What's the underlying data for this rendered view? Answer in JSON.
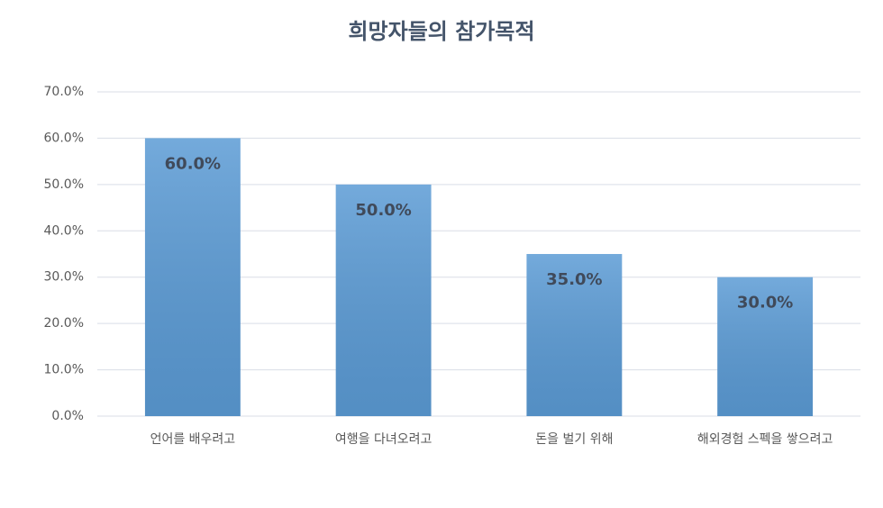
{
  "chart_data": {
    "type": "bar",
    "title": "희망자들의 참가목적",
    "categories": [
      "언어를 배우려고",
      "여행을 다녀오려고",
      "돈을 벌기 위해",
      "해외경험 스펙을 쌓으려고"
    ],
    "values": [
      60,
      50,
      35,
      30
    ],
    "value_labels": [
      "60.0%",
      "50.0%",
      "35.0%",
      "30.0%"
    ],
    "color": "#5b9bd5",
    "ylim": [
      0,
      70
    ],
    "yticks": [
      {
        "value": 0,
        "label": "0.0%"
      },
      {
        "value": 10,
        "label": "10.0%"
      },
      {
        "value": 20,
        "label": "20.0%"
      },
      {
        "value": 30,
        "label": "30.0%"
      },
      {
        "value": 40,
        "label": "40.0%"
      },
      {
        "value": 50,
        "label": "50.0%"
      },
      {
        "value": 60,
        "label": "60.0%"
      },
      {
        "value": 70,
        "label": "70.0%"
      }
    ],
    "grid": true
  }
}
